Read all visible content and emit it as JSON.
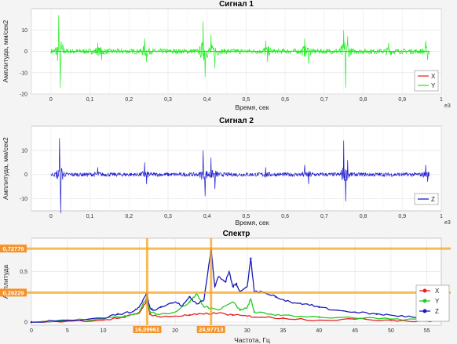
{
  "chart_data": [
    {
      "id": "signal1",
      "type": "line",
      "title": "Сигнал 1",
      "xlabel": "Время, сек",
      "ylabel": "Амплитуда, мм/сек2",
      "xlim": [
        -0.05,
        1.0
      ],
      "ylim": [
        -20,
        20
      ],
      "xticks": [
        "0",
        "0,1",
        "0,2",
        "0,3",
        "0,4",
        "0,5",
        "0,6",
        "0,7",
        "0,8",
        "0,9",
        "1"
      ],
      "yticks": [
        -20,
        -10,
        0,
        10
      ],
      "x_multiplier": "e3",
      "grid": true,
      "legend": "bottom-right",
      "series": [
        {
          "name": "X",
          "color": "#e83030",
          "baseline": 0,
          "noise": 0.0
        },
        {
          "name": "Y",
          "color": "#22ee22",
          "baseline": 0,
          "noise": 1.2,
          "spikes": [
            [
              0.02,
              17
            ],
            [
              0.024,
              -17
            ],
            [
              0.12,
              4
            ],
            [
              0.13,
              -4
            ],
            [
              0.24,
              6
            ],
            [
              0.245,
              -5
            ],
            [
              0.39,
              14
            ],
            [
              0.395,
              -12
            ],
            [
              0.41,
              8
            ],
            [
              0.42,
              -8
            ],
            [
              0.55,
              5
            ],
            [
              0.555,
              -5
            ],
            [
              0.65,
              6
            ],
            [
              0.66,
              -6
            ],
            [
              0.75,
              10
            ],
            [
              0.755,
              -17
            ],
            [
              0.76,
              7
            ],
            [
              0.865,
              4
            ],
            [
              0.96,
              5
            ],
            [
              0.965,
              -4
            ]
          ]
        }
      ]
    },
    {
      "id": "signal2",
      "type": "line",
      "title": "Сигнал 2",
      "xlabel": "Время, сек",
      "ylabel": "Амплитуда, мм/сек2",
      "xlim": [
        -0.05,
        1.0
      ],
      "ylim": [
        -15,
        20
      ],
      "xticks": [
        "0",
        "0,1",
        "0,2",
        "0,3",
        "0,4",
        "0,5",
        "0,6",
        "0,7",
        "0,8",
        "0,9",
        "1"
      ],
      "yticks": [
        -10,
        0,
        10
      ],
      "x_multiplier": "e3",
      "grid": true,
      "legend": "bottom-right",
      "series": [
        {
          "name": "Z",
          "color": "#1a1acc",
          "baseline": 0,
          "noise": 0.8,
          "spikes": [
            [
              0.022,
              15
            ],
            [
              0.025,
              -16
            ],
            [
              0.12,
              3
            ],
            [
              0.24,
              5
            ],
            [
              0.245,
              -4
            ],
            [
              0.39,
              10
            ],
            [
              0.395,
              -9
            ],
            [
              0.41,
              7
            ],
            [
              0.42,
              -6
            ],
            [
              0.55,
              3
            ],
            [
              0.65,
              4
            ],
            [
              0.66,
              -4
            ],
            [
              0.75,
              14
            ],
            [
              0.755,
              -11
            ],
            [
              0.76,
              6
            ],
            [
              0.96,
              4
            ],
            [
              0.965,
              -3
            ]
          ]
        }
      ]
    },
    {
      "id": "spectrum",
      "type": "line",
      "title": "Спектр",
      "xlabel": "Частота, Гц",
      "ylabel": "Амплитуда",
      "xlim": [
        0,
        57
      ],
      "ylim": [
        -0.03,
        0.83
      ],
      "xticks": [
        0,
        5,
        10,
        15,
        20,
        25,
        30,
        35,
        40,
        45,
        50,
        55
      ],
      "yticks": [
        "0",
        "0,5"
      ],
      "ytick_values": [
        0,
        0.5
      ],
      "grid": true,
      "legend": "bottom-right",
      "cursors": {
        "x": [
          {
            "value": 16.09961,
            "label": "16,09961"
          },
          {
            "value": 24.97713,
            "label": "24,97713"
          }
        ],
        "y": [
          {
            "value": 0.72779,
            "label": "0,72779"
          },
          {
            "value": 0.29229,
            "label": "0,29229"
          }
        ]
      },
      "series": [
        {
          "name": "X",
          "color": "#e82020",
          "x": [
            0,
            5,
            10,
            13,
            15,
            16,
            16.5,
            18,
            20,
            22,
            24,
            26,
            28,
            30,
            32,
            35,
            40,
            45,
            50,
            55,
            56
          ],
          "y": [
            0,
            0.01,
            0.02,
            0.05,
            0.09,
            0.21,
            0.08,
            0.05,
            0.06,
            0.07,
            0.08,
            0.09,
            0.07,
            0.06,
            0.05,
            0.04,
            0.02,
            0.03,
            0.02,
            0.01,
            0.01
          ]
        },
        {
          "name": "Y",
          "color": "#22cc22",
          "x": [
            0,
            5,
            10,
            13,
            15,
            16,
            16.5,
            18,
            20,
            22,
            23,
            24,
            25,
            26,
            28,
            29,
            30,
            30.5,
            31,
            33,
            35,
            40,
            45,
            50,
            55,
            56
          ],
          "y": [
            0,
            0.02,
            0.03,
            0.06,
            0.1,
            0.24,
            0.1,
            0.08,
            0.1,
            0.2,
            0.28,
            0.15,
            0.14,
            0.12,
            0.2,
            0.12,
            0.14,
            0.23,
            0.1,
            0.08,
            0.07,
            0.05,
            0.04,
            0.03,
            0.02,
            0.02
          ]
        },
        {
          "name": "Z",
          "color": "#1a1ab8",
          "x": [
            0,
            5,
            10,
            12,
            14,
            15,
            16,
            16.5,
            17,
            18,
            20,
            21,
            22,
            23,
            24,
            25,
            25.5,
            26,
            27,
            27.5,
            28,
            28.5,
            29,
            30,
            30.5,
            31,
            32,
            34,
            36,
            38,
            40,
            42,
            45,
            48,
            50,
            53,
            55,
            56
          ],
          "y": [
            0,
            0.02,
            0.04,
            0.08,
            0.1,
            0.15,
            0.28,
            0.14,
            0.12,
            0.15,
            0.2,
            0.16,
            0.25,
            0.18,
            0.22,
            0.73,
            0.35,
            0.45,
            0.4,
            0.5,
            0.35,
            0.38,
            0.3,
            0.35,
            0.63,
            0.3,
            0.3,
            0.25,
            0.2,
            0.18,
            0.15,
            0.12,
            0.1,
            0.08,
            0.07,
            0.05,
            0.04,
            0.04
          ]
        }
      ]
    }
  ]
}
